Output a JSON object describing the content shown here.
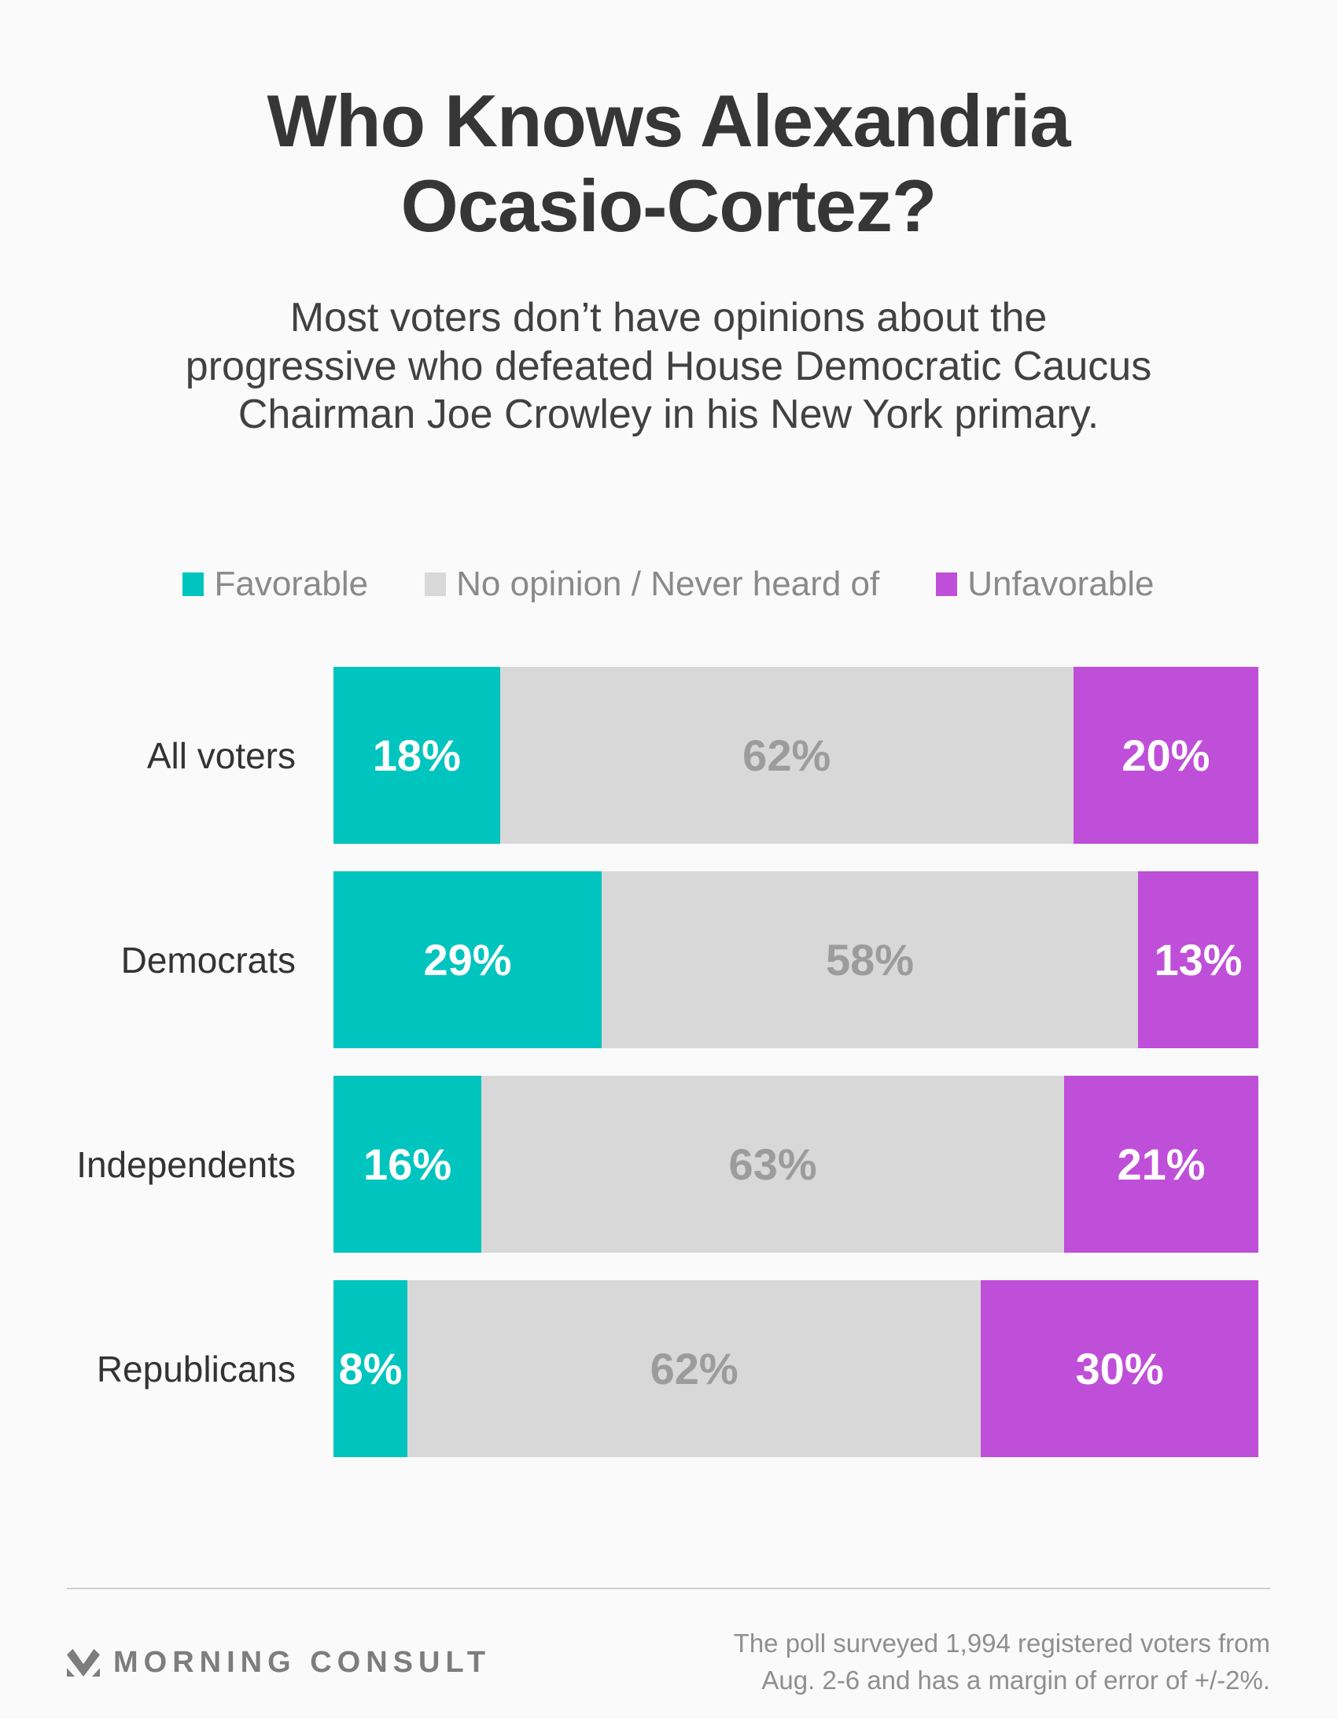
{
  "header": {
    "title_lines": [
      "Who Knows Alexandria",
      "Ocasio-Cortez?"
    ],
    "subtitle_lines": [
      "Most voters don’t have opinions about the",
      "progressive who defeated House Democratic Caucus",
      "Chairman Joe Crowley in his New York primary."
    ]
  },
  "chart_data": {
    "type": "bar",
    "orientation": "horizontal_stacked",
    "unit": "%",
    "xlim": [
      0,
      100
    ],
    "grid": false,
    "legend_position": "top",
    "categories": [
      "All voters",
      "Democrats",
      "Independents",
      "Republicans"
    ],
    "series": [
      {
        "name": "Favorable",
        "color": "#00c4be",
        "value_text_color": "#ffffff",
        "values": [
          18,
          29,
          16,
          8
        ]
      },
      {
        "name": "No opinion / Never heard of",
        "color": "#d8d8d8",
        "value_text_color": "#9c9c9c",
        "values": [
          62,
          58,
          63,
          62
        ]
      },
      {
        "name": "Unfavorable",
        "color": "#bf4fd8",
        "value_text_color": "#ffffff",
        "values": [
          20,
          13,
          21,
          30
        ]
      }
    ]
  },
  "footer": {
    "logo_text": "MORNING CONSULT",
    "note_lines": [
      "The poll surveyed 1,994 registered voters from",
      "Aug. 2-6 and has a margin of error of +/-2%."
    ]
  },
  "colors": {
    "background": "#fafafa",
    "title_text": "#363636",
    "subtitle_text": "#414141",
    "legend_text": "#8a8a8a",
    "row_label_text": "#333333",
    "divider": "#cfcfcf",
    "logo": "#7d7d7d",
    "note_text": "#8f8f8f"
  }
}
